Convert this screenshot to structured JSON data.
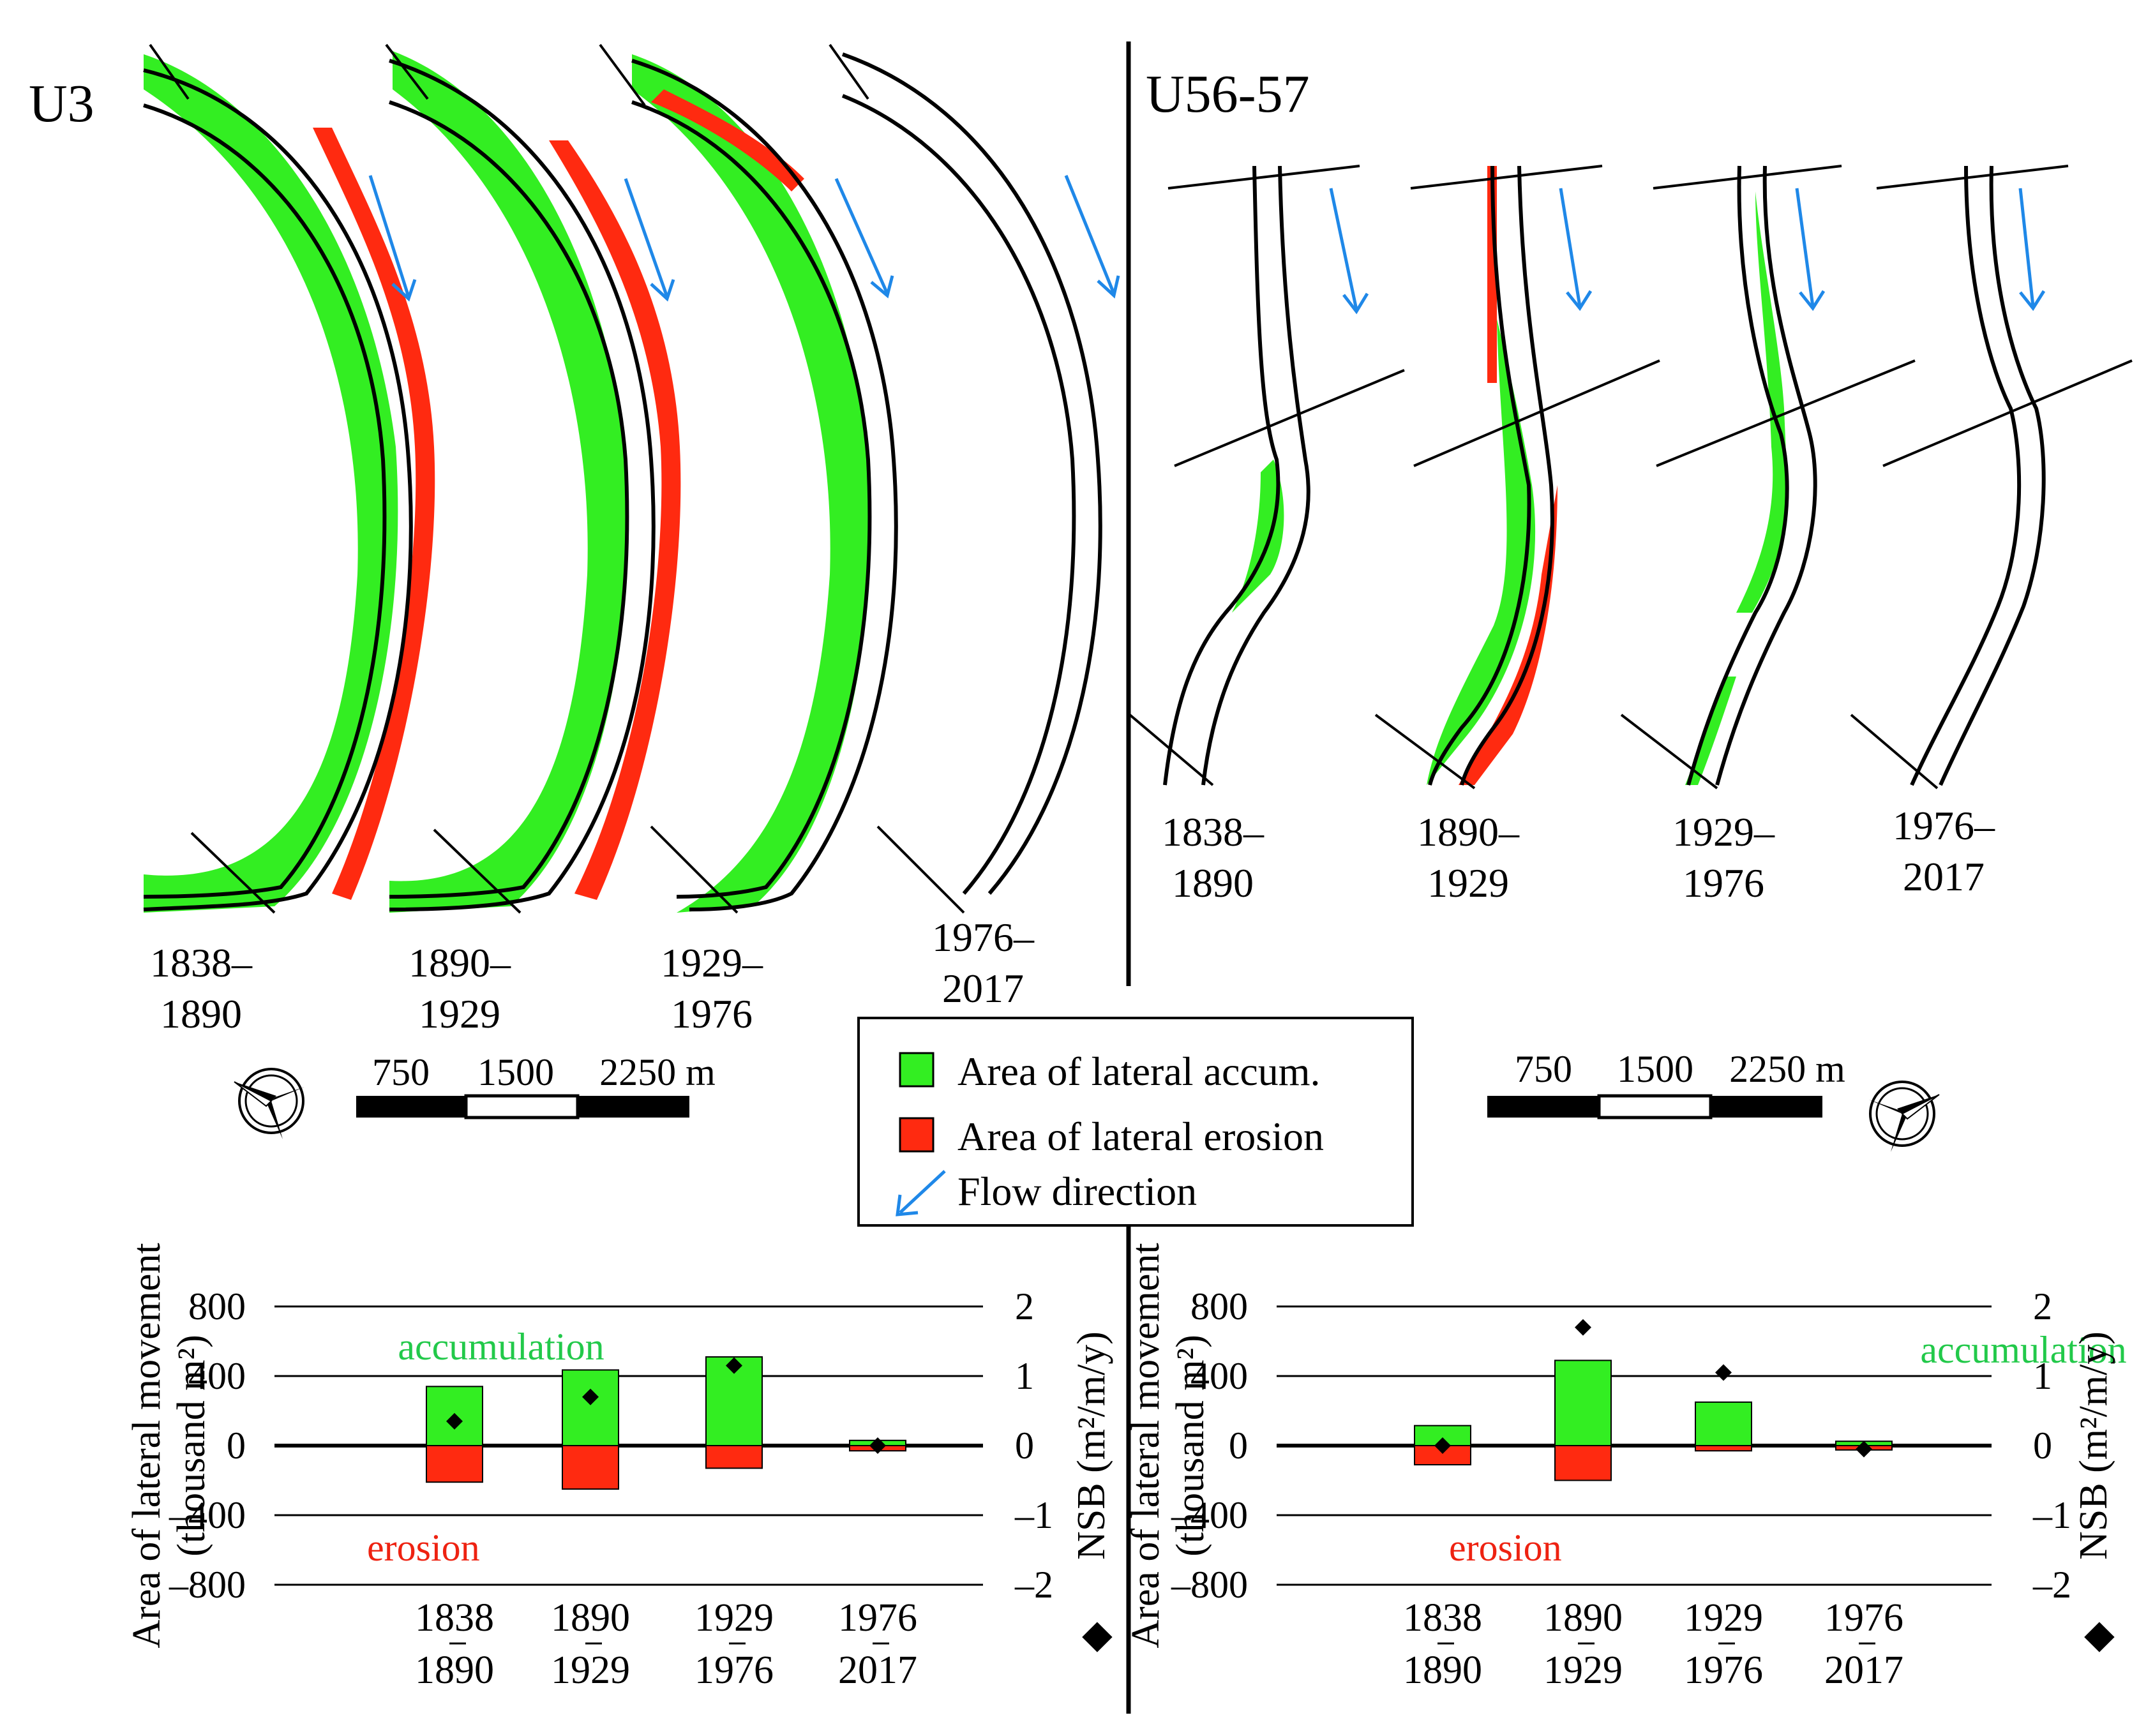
{
  "colors": {
    "accumulation": "#33ee22",
    "erosion": "#ff2a10",
    "flow": "#1f88e8",
    "accumulation_text": "#22c94a",
    "erosion_text": "#ee2211"
  },
  "left_panel": {
    "label": "U3",
    "periods": [
      {
        "start": "1838–",
        "end": "1890"
      },
      {
        "start": "1890–",
        "end": "1929"
      },
      {
        "start": "1929–",
        "end": "1976"
      },
      {
        "start": "1976–",
        "end": "2017"
      }
    ],
    "scale_labels": [
      "750",
      "1500",
      "2250 m"
    ],
    "icons": [
      "north-arrow-icon",
      "flow-arrow-icon"
    ]
  },
  "right_panel": {
    "label": "U56-57",
    "periods": [
      {
        "start": "1838–",
        "end": "1890"
      },
      {
        "start": "1890–",
        "end": "1929"
      },
      {
        "start": "1929–",
        "end": "1976"
      },
      {
        "start": "1976–",
        "end": "2017"
      }
    ],
    "scale_labels": [
      "750",
      "1500",
      "2250 m"
    ],
    "icons": [
      "north-arrow-icon",
      "flow-arrow-icon"
    ]
  },
  "legend": {
    "items": [
      {
        "label": "Area of lateral accum.",
        "icon": "green-square-icon"
      },
      {
        "label": "Area of lateral erosion",
        "icon": "red-square-icon"
      },
      {
        "label": "Flow direction",
        "icon": "blue-arrow-icon"
      }
    ]
  },
  "chart_data": [
    {
      "type": "bar",
      "panel": "U3",
      "categories": [
        {
          "top": "1838",
          "bottom": "1890"
        },
        {
          "top": "1890",
          "bottom": "1929"
        },
        {
          "top": "1929",
          "bottom": "1976"
        },
        {
          "top": "1976",
          "bottom": "2017"
        }
      ],
      "series": [
        {
          "name": "accumulation",
          "values": [
            340,
            435,
            510,
            30
          ]
        },
        {
          "name": "erosion",
          "values": [
            -210,
            -250,
            -130,
            -30
          ]
        },
        {
          "name": "NSB",
          "axis": "right",
          "values": [
            0.35,
            0.7,
            1.15,
            0.0
          ]
        }
      ],
      "ylabel_line1": "Area of lateral movement",
      "ylabel_line2": "(thousand m²)",
      "y2label": "NSB (m²/m/y)",
      "y2marker": "◆",
      "ylim": [
        -800,
        800
      ],
      "y2lim": [
        -2,
        2
      ],
      "yticks": [
        "800",
        "400",
        "0",
        "–400",
        "–800"
      ],
      "y2ticks": [
        "2",
        "1",
        "0",
        "–1",
        "–2"
      ],
      "annotation_acc": "accumulation",
      "annotation_ero": "erosion"
    },
    {
      "type": "bar",
      "panel": "U56-57",
      "categories": [
        {
          "top": "1838",
          "bottom": "1890"
        },
        {
          "top": "1890",
          "bottom": "1929"
        },
        {
          "top": "1929",
          "bottom": "1976"
        },
        {
          "top": "1976",
          "bottom": "2017"
        }
      ],
      "series": [
        {
          "name": "accumulation",
          "values": [
            115,
            490,
            250,
            25
          ]
        },
        {
          "name": "erosion",
          "values": [
            -110,
            -200,
            -30,
            -25
          ]
        },
        {
          "name": "NSB",
          "axis": "right",
          "values": [
            0.0,
            1.7,
            1.05,
            -0.05
          ]
        }
      ],
      "ylabel_line1": "Area of lateral movement",
      "ylabel_line2": "(thousand m²)",
      "y2label": "NSB (m²/m/y)",
      "y2marker": "◆",
      "ylim": [
        -800,
        800
      ],
      "y2lim": [
        -2,
        2
      ],
      "yticks": [
        "800",
        "400",
        "0",
        "–400",
        "–800"
      ],
      "y2ticks": [
        "2",
        "1",
        "0",
        "–1",
        "–2"
      ],
      "annotation_acc": "accumulation",
      "annotation_ero": "erosion"
    }
  ]
}
